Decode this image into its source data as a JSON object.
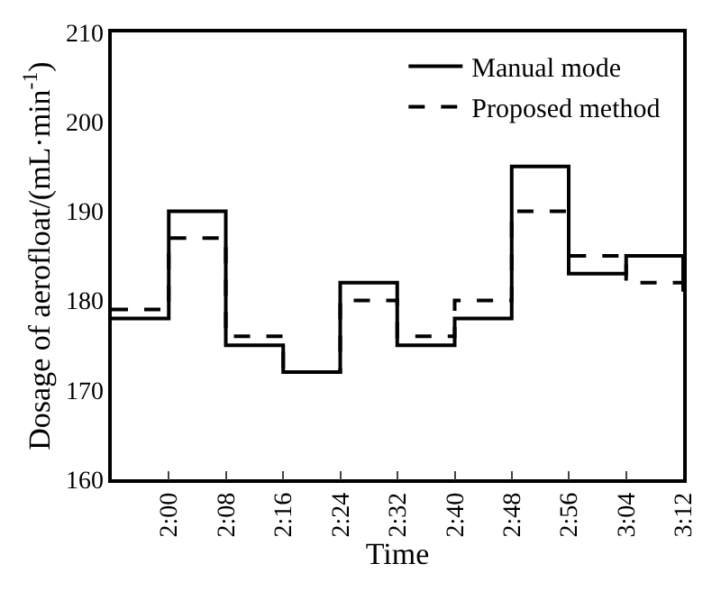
{
  "chart_data": {
    "type": "step",
    "xlabel": "Time",
    "ylabel": "Dosage of aerofloat/(mL·min$^{-1}$)",
    "x": [
      1.867,
      2,
      2.133,
      2.267,
      2.4,
      2.533,
      2.667,
      2.8,
      2.933,
      3.067,
      3.2
    ],
    "series": [
      {
        "name": "Manual mode",
        "color": "#000000",
        "line_style": "solid",
        "values": [
          178,
          190,
          175,
          172,
          182,
          175,
          178,
          195,
          183,
          185,
          181
        ]
      },
      {
        "name": "Proposed method",
        "color": "#000000",
        "line_style": "dashed",
        "values": [
          179,
          187,
          176,
          172,
          180,
          176,
          180,
          190,
          185,
          182,
          182
        ]
      }
    ],
    "xlim": [
      1.867,
      3.2
    ],
    "xticks": [
      {
        "value": 2,
        "label": "2:00"
      },
      {
        "value": 2.133,
        "label": "2:08"
      },
      {
        "value": 2.267,
        "label": "2:16"
      },
      {
        "value": 2.4,
        "label": "2:24"
      },
      {
        "value": 2.533,
        "label": "2:32"
      },
      {
        "value": 2.667,
        "label": "2:40"
      },
      {
        "value": 2.8,
        "label": "2:48"
      },
      {
        "value": 2.933,
        "label": "2:56"
      },
      {
        "value": 3.067,
        "label": "3:04"
      },
      {
        "value": 3.2,
        "label": "3:12"
      }
    ],
    "ylim": [
      160,
      210
    ],
    "yticks": [
      160,
      170,
      180,
      190,
      200,
      210
    ],
    "grid": false,
    "legend": "top right",
    "marker": "none"
  }
}
